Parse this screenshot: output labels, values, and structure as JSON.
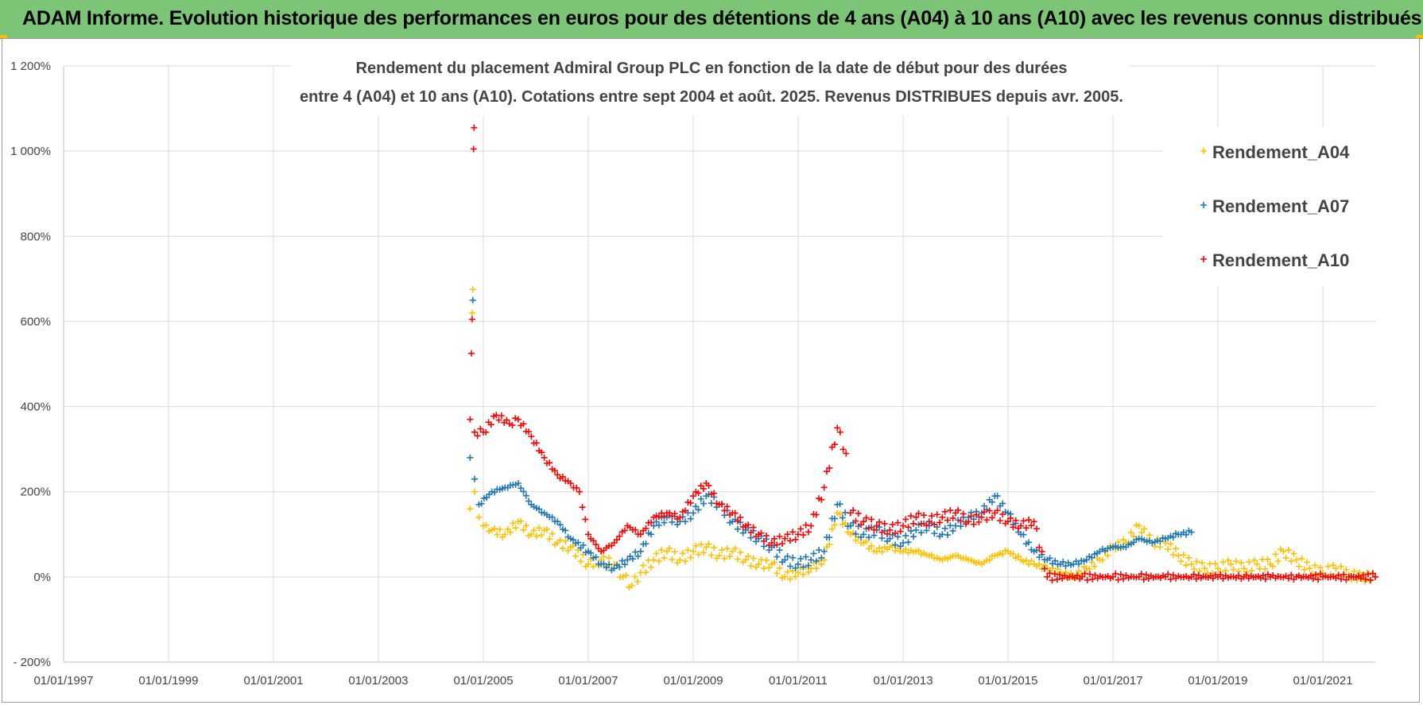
{
  "header": {
    "title": "ADAM Informe. Evolution historique des performances en euros pour des détentions de 4 ans (A04) à 10 ans (A10) avec les revenus connus distribués"
  },
  "colors": {
    "banner": "#7cc576",
    "A04": "#ffc000",
    "A07": "#1f77b4",
    "A10": "#ff0000",
    "grid": "#d9d9d9"
  },
  "chart_data": {
    "type": "scatter",
    "title_lines": [
      "Rendement du placement Admiral Group PLC en fonction de la date de début pour des durées",
      "entre 4 (A04) et 10 ans (A10).  Cotations entre sept 2004 et août. 2025.  Revenus DISTRIBUES depuis avr. 2005."
    ],
    "xlabel": "",
    "ylabel": "",
    "xlim": [
      "1997-01-01",
      "2022-01-01"
    ],
    "ylim": [
      -200,
      1200
    ],
    "x_tick_labels": [
      "01/01/1997",
      "01/01/1999",
      "01/01/2001",
      "01/01/2003",
      "01/01/2005",
      "01/01/2007",
      "01/01/2009",
      "01/01/2011",
      "01/01/2013",
      "01/01/2015",
      "01/01/2017",
      "01/01/2019",
      "01/01/2021"
    ],
    "x_tick_dates": [
      "1997-01-01",
      "1999-01-01",
      "2001-01-01",
      "2003-01-01",
      "2005-01-01",
      "2007-01-01",
      "2009-01-01",
      "2011-01-01",
      "2013-01-01",
      "2015-01-01",
      "2017-01-01",
      "2019-01-01",
      "2021-01-01"
    ],
    "y_tick_labels": [
      "- 200%",
      "0%",
      "200%",
      "400%",
      "600%",
      "800%",
      "1 000%",
      "1 200%"
    ],
    "y_tick_values": [
      -200,
      0,
      200,
      400,
      600,
      800,
      1000,
      1200
    ],
    "grid": true,
    "marker": "+",
    "legend_position": "right",
    "series": [
      {
        "name": "Rendement_A04",
        "color": "#ffc000",
        "points": [
          [
            "2004-10-01",
            160
          ],
          [
            "2004-10-15",
            620
          ],
          [
            "2004-10-20",
            675
          ],
          [
            "2004-11-01",
            200
          ],
          [
            "2004-12-01",
            140
          ],
          [
            "2005-01-01",
            120
          ],
          [
            "2005-03-01",
            110
          ],
          [
            "2005-06-01",
            100
          ],
          [
            "2005-09-01",
            130
          ],
          [
            "2005-12-01",
            100
          ],
          [
            "2006-03-01",
            110
          ],
          [
            "2006-06-01",
            80
          ],
          [
            "2006-09-01",
            70
          ],
          [
            "2007-01-01",
            30
          ],
          [
            "2007-04-01",
            40
          ],
          [
            "2007-07-01",
            30
          ],
          [
            "2007-09-01",
            0
          ],
          [
            "2007-11-01",
            -20
          ],
          [
            "2008-01-01",
            10
          ],
          [
            "2008-04-01",
            40
          ],
          [
            "2008-07-01",
            60
          ],
          [
            "2008-10-01",
            40
          ],
          [
            "2009-01-01",
            60
          ],
          [
            "2009-04-01",
            70
          ],
          [
            "2009-07-01",
            50
          ],
          [
            "2009-10-01",
            60
          ],
          [
            "2010-01-01",
            40
          ],
          [
            "2010-04-01",
            30
          ],
          [
            "2010-07-01",
            30
          ],
          [
            "2010-10-01",
            0
          ],
          [
            "2011-01-01",
            10
          ],
          [
            "2011-04-01",
            20
          ],
          [
            "2011-07-01",
            40
          ],
          [
            "2011-10-01",
            150
          ],
          [
            "2012-01-01",
            100
          ],
          [
            "2012-04-01",
            80
          ],
          [
            "2012-07-01",
            60
          ],
          [
            "2012-10-01",
            70
          ],
          [
            "2013-01-01",
            60
          ],
          [
            "2013-04-01",
            60
          ],
          [
            "2013-07-01",
            50
          ],
          [
            "2013-10-01",
            40
          ],
          [
            "2014-01-01",
            50
          ],
          [
            "2014-04-01",
            40
          ],
          [
            "2014-07-01",
            30
          ],
          [
            "2014-10-01",
            50
          ],
          [
            "2015-01-01",
            60
          ],
          [
            "2015-04-01",
            40
          ],
          [
            "2015-07-01",
            30
          ],
          [
            "2015-10-01",
            20
          ],
          [
            "2016-01-01",
            10
          ],
          [
            "2016-04-01",
            0
          ],
          [
            "2016-07-01",
            20
          ],
          [
            "2016-10-01",
            40
          ],
          [
            "2017-01-01",
            70
          ],
          [
            "2017-04-01",
            80
          ],
          [
            "2017-07-01",
            120
          ],
          [
            "2017-10-01",
            80
          ],
          [
            "2018-01-01",
            80
          ],
          [
            "2018-04-01",
            50
          ],
          [
            "2018-07-01",
            30
          ],
          [
            "2018-10-01",
            20
          ],
          [
            "2019-01-01",
            20
          ],
          [
            "2019-04-01",
            30
          ],
          [
            "2019-07-01",
            20
          ],
          [
            "2019-10-01",
            30
          ],
          [
            "2020-01-01",
            30
          ],
          [
            "2020-04-01",
            60
          ],
          [
            "2020-07-01",
            40
          ],
          [
            "2020-10-01",
            20
          ],
          [
            "2021-01-01",
            10
          ],
          [
            "2021-04-01",
            20
          ],
          [
            "2021-07-01",
            5
          ],
          [
            "2021-10-01",
            0
          ],
          [
            "2022-01-01",
            0
          ]
        ]
      },
      {
        "name": "Rendement_A07",
        "color": "#1f77b4",
        "points": [
          [
            "2004-10-01",
            280
          ],
          [
            "2004-10-20",
            650
          ],
          [
            "2004-11-01",
            230
          ],
          [
            "2004-12-01",
            170
          ],
          [
            "2005-03-01",
            200
          ],
          [
            "2005-06-01",
            210
          ],
          [
            "2005-09-01",
            220
          ],
          [
            "2005-12-01",
            170
          ],
          [
            "2006-03-01",
            150
          ],
          [
            "2006-06-01",
            130
          ],
          [
            "2006-09-01",
            90
          ],
          [
            "2007-01-01",
            60
          ],
          [
            "2007-04-01",
            30
          ],
          [
            "2007-07-01",
            20
          ],
          [
            "2007-10-01",
            40
          ],
          [
            "2008-01-01",
            60
          ],
          [
            "2008-04-01",
            120
          ],
          [
            "2008-07-01",
            140
          ],
          [
            "2008-10-01",
            130
          ],
          [
            "2009-01-01",
            150
          ],
          [
            "2009-04-01",
            190
          ],
          [
            "2009-07-01",
            170
          ],
          [
            "2009-10-01",
            130
          ],
          [
            "2010-01-01",
            110
          ],
          [
            "2010-04-01",
            90
          ],
          [
            "2010-07-01",
            70
          ],
          [
            "2010-10-01",
            40
          ],
          [
            "2011-01-01",
            30
          ],
          [
            "2011-04-01",
            40
          ],
          [
            "2011-07-01",
            60
          ],
          [
            "2011-10-01",
            170
          ],
          [
            "2012-01-01",
            120
          ],
          [
            "2012-04-01",
            100
          ],
          [
            "2012-07-01",
            110
          ],
          [
            "2012-10-01",
            90
          ],
          [
            "2013-01-01",
            80
          ],
          [
            "2013-04-01",
            110
          ],
          [
            "2013-07-01",
            120
          ],
          [
            "2013-10-01",
            100
          ],
          [
            "2014-01-01",
            120
          ],
          [
            "2014-04-01",
            140
          ],
          [
            "2014-07-01",
            150
          ],
          [
            "2014-10-01",
            190
          ],
          [
            "2015-01-01",
            150
          ],
          [
            "2015-04-01",
            100
          ],
          [
            "2015-07-01",
            60
          ],
          [
            "2015-10-01",
            40
          ],
          [
            "2016-01-01",
            30
          ],
          [
            "2016-04-01",
            30
          ],
          [
            "2016-07-01",
            40
          ],
          [
            "2016-10-01",
            60
          ],
          [
            "2017-01-01",
            70
          ],
          [
            "2017-04-01",
            70
          ],
          [
            "2017-07-01",
            90
          ],
          [
            "2017-10-01",
            80
          ],
          [
            "2018-01-01",
            90
          ],
          [
            "2018-04-01",
            100
          ],
          [
            "2018-07-01",
            105
          ]
        ]
      },
      {
        "name": "Rendement_A10",
        "color": "#ff0000",
        "points": [
          [
            "2004-10-01",
            370
          ],
          [
            "2004-10-10",
            525
          ],
          [
            "2004-10-15",
            605
          ],
          [
            "2004-10-25",
            1005
          ],
          [
            "2004-10-28",
            1055
          ],
          [
            "2004-11-01",
            340
          ],
          [
            "2005-01-01",
            340
          ],
          [
            "2005-04-01",
            380
          ],
          [
            "2005-07-01",
            360
          ],
          [
            "2005-09-01",
            370
          ],
          [
            "2005-12-01",
            330
          ],
          [
            "2006-03-01",
            280
          ],
          [
            "2006-06-01",
            240
          ],
          [
            "2006-09-01",
            220
          ],
          [
            "2006-11-01",
            200
          ],
          [
            "2007-01-01",
            100
          ],
          [
            "2007-04-01",
            60
          ],
          [
            "2007-07-01",
            80
          ],
          [
            "2007-10-01",
            120
          ],
          [
            "2008-01-01",
            100
          ],
          [
            "2008-04-01",
            140
          ],
          [
            "2008-07-01",
            150
          ],
          [
            "2008-10-01",
            140
          ],
          [
            "2009-01-01",
            190
          ],
          [
            "2009-04-01",
            220
          ],
          [
            "2009-07-01",
            170
          ],
          [
            "2009-10-01",
            150
          ],
          [
            "2010-01-01",
            120
          ],
          [
            "2010-04-01",
            100
          ],
          [
            "2010-07-01",
            80
          ],
          [
            "2010-10-01",
            90
          ],
          [
            "2011-01-01",
            100
          ],
          [
            "2011-04-01",
            120
          ],
          [
            "2011-07-01",
            210
          ],
          [
            "2011-10-01",
            350
          ],
          [
            "2011-12-01",
            290
          ],
          [
            "2012-01-01",
            150
          ],
          [
            "2012-04-01",
            130
          ],
          [
            "2012-07-01",
            120
          ],
          [
            "2012-10-01",
            110
          ],
          [
            "2013-01-01",
            120
          ],
          [
            "2013-04-01",
            140
          ],
          [
            "2013-07-01",
            130
          ],
          [
            "2013-10-01",
            140
          ],
          [
            "2014-01-01",
            150
          ],
          [
            "2014-04-01",
            130
          ],
          [
            "2014-07-01",
            140
          ],
          [
            "2014-10-01",
            150
          ],
          [
            "2015-01-01",
            130
          ],
          [
            "2015-04-01",
            120
          ],
          [
            "2015-07-01",
            130
          ],
          [
            "2015-10-01",
            0
          ],
          [
            "2016-06-01",
            0
          ],
          [
            "2017-01-01",
            0
          ],
          [
            "2017-07-01",
            0
          ],
          [
            "2018-01-01",
            0
          ],
          [
            "2018-07-01",
            0
          ],
          [
            "2019-01-01",
            0
          ],
          [
            "2019-07-01",
            0
          ],
          [
            "2020-01-01",
            0
          ],
          [
            "2020-07-01",
            0
          ],
          [
            "2021-01-01",
            0
          ],
          [
            "2021-07-01",
            0
          ],
          [
            "2022-01-01",
            0
          ]
        ]
      }
    ]
  }
}
